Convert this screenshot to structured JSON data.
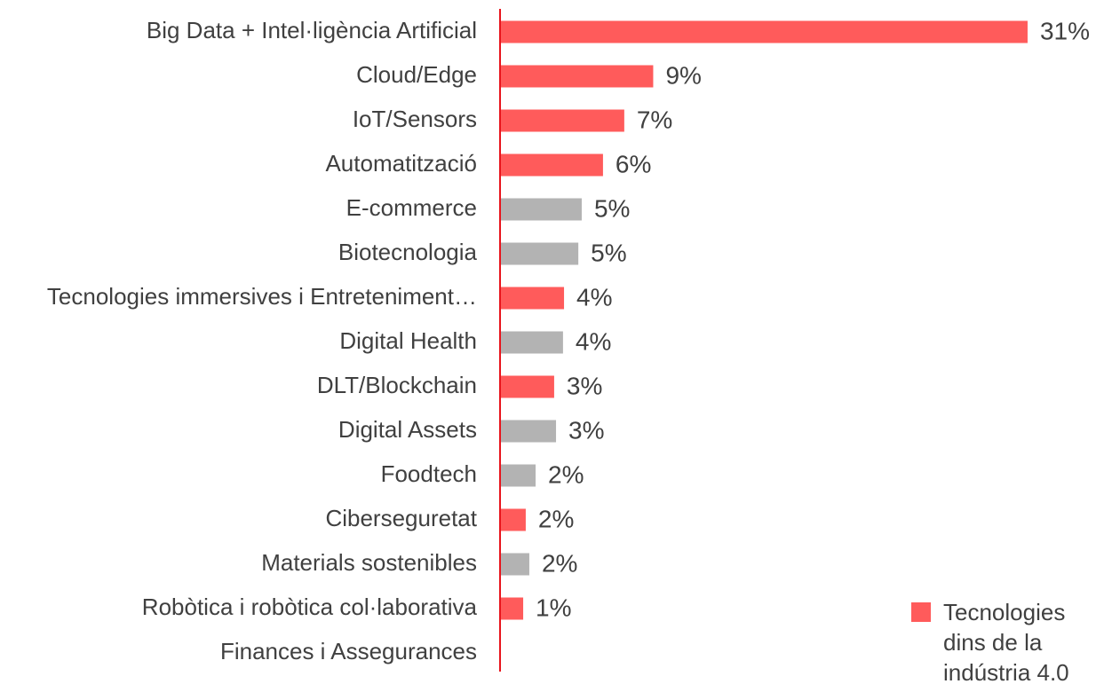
{
  "chart_data": {
    "type": "bar",
    "orientation": "horizontal",
    "categories": [
      "Big Data + Intel·ligència Artificial",
      "Cloud/Edge",
      "IoT/Sensors",
      "Automatització",
      "E-commerce",
      "Biotecnologia",
      "Tecnologies immersives i Entreteniment…",
      "Digital Health",
      "DLT/Blockchain",
      "Digital Assets",
      "Foodtech",
      "Ciberseguretat",
      "Materials sostenibles",
      "Robòtica i robòtica col·laborativa",
      "Finances i Assegurances"
    ],
    "values": [
      31.0,
      9.0,
      7.3,
      6.05,
      4.8,
      4.6,
      3.76,
      3.7,
      3.18,
      3.29,
      2.09,
      1.51,
      1.72,
      1.36,
      null
    ],
    "value_labels": [
      "31%",
      "9%",
      "7%",
      "6%",
      "5%",
      "5%",
      "4%",
      "4%",
      "3%",
      "3%",
      "2%",
      "2%",
      "2%",
      "1%",
      null
    ],
    "colors": [
      "#ff5b5b",
      "#ff5b5b",
      "#ff5b5b",
      "#ff5b5b",
      "#b3b3b3",
      "#b3b3b3",
      "#ff5b5b",
      "#b3b3b3",
      "#ff5b5b",
      "#b3b3b3",
      "#b3b3b3",
      "#ff5b5b",
      "#b3b3b3",
      "#ff5b5b",
      "#b3b3b3"
    ],
    "xlim": [
      0,
      35
    ],
    "axis_color": "#e8141c",
    "legend": {
      "label": "Tecnologies dins de la indústria 4.0",
      "color": "#ff5b5b",
      "position": "lower right"
    }
  }
}
